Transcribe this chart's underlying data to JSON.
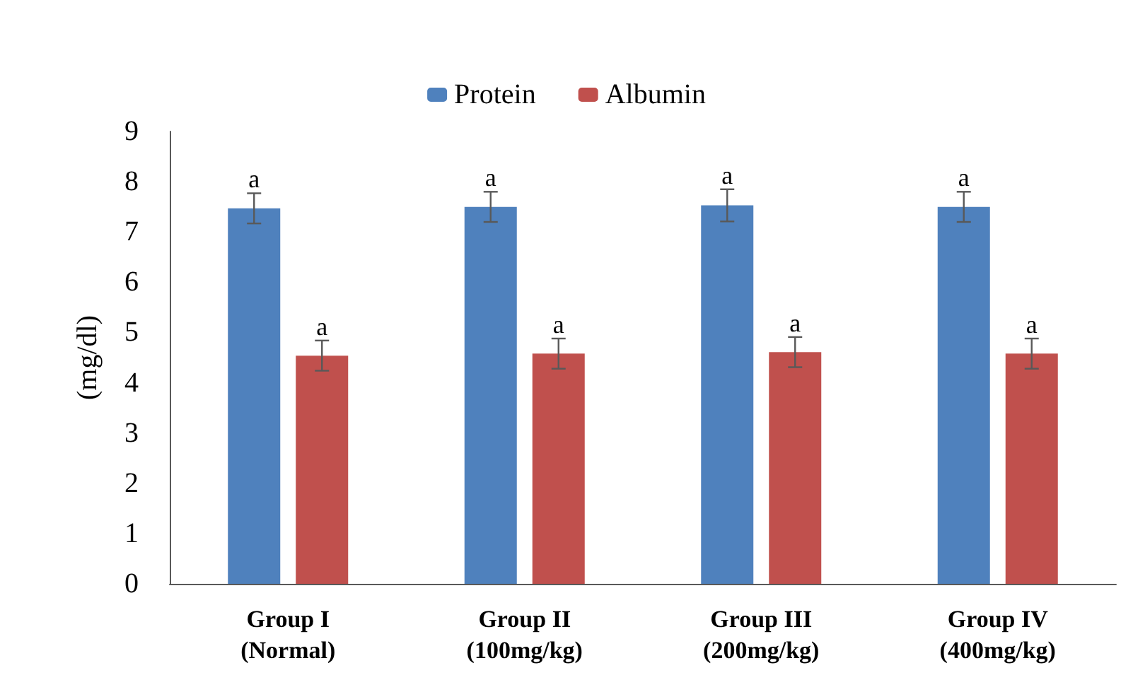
{
  "chart_data": {
    "type": "bar",
    "ylabel": "(mg/dl)",
    "categories": [
      "Group I (Normal)",
      "Group II (100mg/kg)",
      "Group III (200mg/kg)",
      "Group IV (400mg/kg)"
    ],
    "series": [
      {
        "name": "Protein",
        "color": "#4f81bd",
        "values": [
          7.47,
          7.5,
          7.53,
          7.5
        ],
        "errors": [
          0.3,
          0.3,
          0.32,
          0.3
        ],
        "value_labels": [
          "a",
          "a",
          "a",
          "a"
        ]
      },
      {
        "name": "Albumin",
        "color": "#c0504d",
        "values": [
          4.54,
          4.58,
          4.61,
          4.58
        ],
        "errors": [
          0.3,
          0.3,
          0.3,
          0.3
        ],
        "value_labels": [
          "a",
          "a",
          "a",
          "a"
        ]
      }
    ],
    "ylim": [
      0,
      9
    ],
    "yticks": [
      0,
      1,
      2,
      3,
      4,
      5,
      6,
      7,
      8,
      9
    ],
    "grid": false,
    "legend": "top"
  }
}
